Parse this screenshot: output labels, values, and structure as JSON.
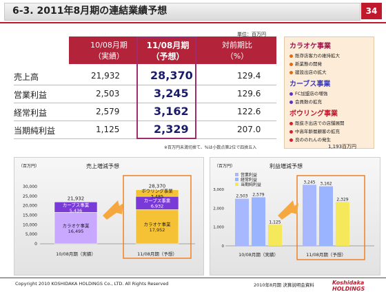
{
  "header": {
    "title": "6-3. 2011年8月期の連結業績予想",
    "page": "34"
  },
  "unit": "単位：百万円",
  "table": {
    "cols": [
      {
        "l1": "10/08月期",
        "l2": "（実績）"
      },
      {
        "l1": "11/08月期",
        "l2": "（予想）"
      },
      {
        "l1": "対前期比",
        "l2": "（%）"
      }
    ],
    "rows": [
      {
        "label": "売上高",
        "actual": "21,932",
        "forecast": "28,370",
        "ratio": "129.4"
      },
      {
        "label": "営業利益",
        "actual": "2,503",
        "forecast": "3,245",
        "ratio": "129.6"
      },
      {
        "label": "経常利益",
        "actual": "2,579",
        "forecast": "3,162",
        "ratio": "122.6"
      },
      {
        "label": "当期純利益",
        "actual": "1,125",
        "forecast": "2,329",
        "ratio": "207.0"
      }
    ],
    "note": "※百万円未満切捨て、%は小数点第2位で四捨五入"
  },
  "businesses": {
    "sections": [
      {
        "title": "カラオケ事業",
        "color": "#a0164a",
        "items": [
          "既存店客力の維持拡大",
          "新業態の開発",
          "建設出店の拡大"
        ],
        "dot": "#e06a10"
      },
      {
        "title": "カーブス事業",
        "color": "#3b3bb8",
        "items": [
          "FC加盟店の増強",
          "会員数の拡充"
        ],
        "dot": "#5a35b8"
      },
      {
        "title": "ボウリング事業",
        "color": "#c0182d",
        "items": [
          "既抜き出店での店舗展開",
          "中高年齢層顧客の拡充",
          "良ののれんの発生"
        ],
        "dot": "#d8202d"
      }
    ],
    "sum": "1,193百万円"
  },
  "sales_chart": {
    "title": "売上増減予想",
    "unit": "（百万円）",
    "yticks": [
      "30,000",
      "25,000",
      "20,000",
      "15,000",
      "10,000",
      "5,000",
      "0"
    ],
    "xlabels": [
      "10/08月期（実績）",
      "11/08月期（予想）"
    ],
    "bars": [
      {
        "total": "21,932",
        "segments": [
          {
            "label": "カラオケ事業",
            "value": "16,495",
            "num": 16495,
            "color": "#c9a8ff"
          },
          {
            "label": "カーブス事業",
            "value": "5,436",
            "num": 5436,
            "color": "#7a3ad8"
          }
        ]
      },
      {
        "total": "28,370",
        "segments": [
          {
            "label": "カラオケ事業",
            "value": "17,952",
            "num": 17952,
            "color": "#f5c235"
          },
          {
            "label": "カーブス事業",
            "value": "6,932",
            "num": 6932,
            "color": "#7a3ad8"
          },
          {
            "label": "ボウリング事業",
            "value": "3,485",
            "num": 3485,
            "color": "#f5c235"
          }
        ]
      }
    ]
  },
  "profit_chart": {
    "title": "利益増減予想",
    "unit": "（百万円）",
    "yticks": [
      "3,000",
      "2,000",
      "1,000",
      "0"
    ],
    "legend": [
      "営業利益",
      "経常利益",
      "当期純利益"
    ],
    "colors": [
      "#a8b8ff",
      "#9ab4ff",
      "#f5e85a"
    ],
    "xlabels": [
      "10/08月期（実績）",
      "11/08月期（予想）"
    ],
    "groups": [
      {
        "values": [
          2503,
          2579,
          1125
        ],
        "labels": [
          "2,503",
          "2,579",
          "1,125"
        ]
      },
      {
        "values": [
          3245,
          3162,
          2329
        ],
        "labels": [
          "3,245",
          "3,162",
          "2,329"
        ]
      }
    ]
  },
  "footer": {
    "copyright": "Copyright 2010 KOSHIDAKA HOLDINGS Co., LTD. All Rights Reserved",
    "material": "2010年8月期 決算説明会資料",
    "logo": "Koshidaka HOLDINGS"
  }
}
